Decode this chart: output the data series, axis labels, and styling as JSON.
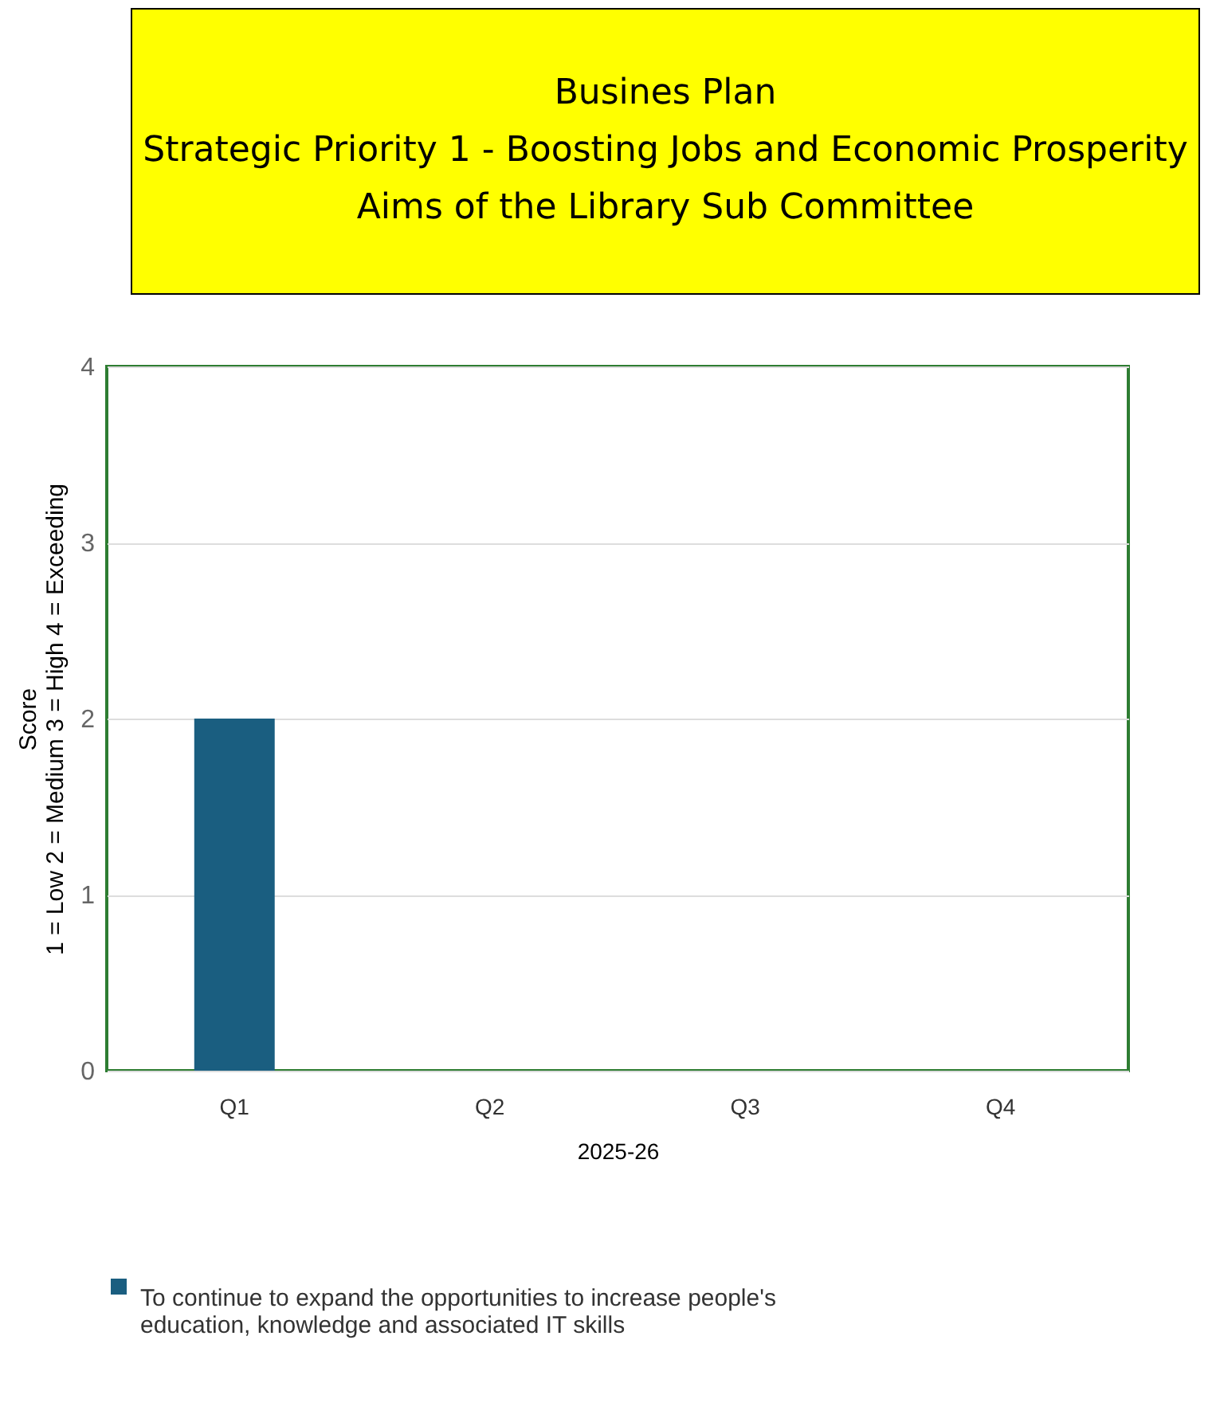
{
  "chart_data": {
    "type": "bar",
    "title": "Busines  Plan\nStrategic Priority 1 - Boosting Jobs and Economic Prosperity\nAims of the Library Sub Committee",
    "xlabel": "2025-26",
    "ylabel": "Score\n1 = Low  2 = Medium   3 = High 4 = Exceeding",
    "categories": [
      "Q1",
      "Q2",
      "Q3",
      "Q4"
    ],
    "series": [
      {
        "name": "To continue to expand the opportunities to increase people's education, knowledge and associated IT skills",
        "color": "#1a5e80",
        "values": [
          2,
          null,
          null,
          null
        ]
      }
    ],
    "ylim": [
      0,
      4
    ],
    "yticks": [
      0,
      1,
      2,
      3,
      4
    ],
    "grid": "y",
    "legend": "bottom"
  }
}
